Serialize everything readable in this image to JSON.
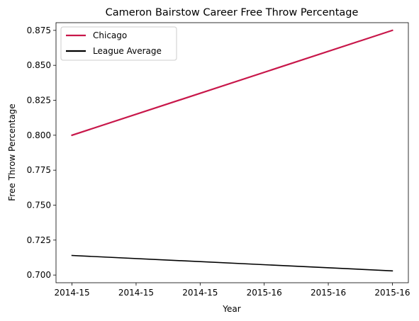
{
  "chart_data": {
    "type": "line",
    "title": "Cameron Bairstow Career Free Throw Percentage",
    "xlabel": "Year",
    "ylabel": "Free Throw Percentage",
    "x_tick_labels": [
      "2014-15",
      "2014-15",
      "2014-15",
      "2015-16",
      "2015-16",
      "2015-16"
    ],
    "x_positions": [
      0,
      0.2,
      0.4,
      0.6,
      0.8,
      1.0
    ],
    "xlim": [
      -0.05,
      1.05
    ],
    "y_ticks": [
      "0.700",
      "0.725",
      "0.750",
      "0.775",
      "0.800",
      "0.825",
      "0.850",
      "0.875"
    ],
    "ylim": [
      0.6945,
      0.8805
    ],
    "grid": false,
    "legend_position": "upper-left",
    "series": [
      {
        "name": "Chicago",
        "color": "#c8174a",
        "x": [
          "2014-15",
          "2015-16"
        ],
        "values": [
          0.8,
          0.875
        ]
      },
      {
        "name": "League Average",
        "color": "#000000",
        "x": [
          "2014-15",
          "2015-16"
        ],
        "values": [
          0.714,
          0.703
        ]
      }
    ]
  }
}
